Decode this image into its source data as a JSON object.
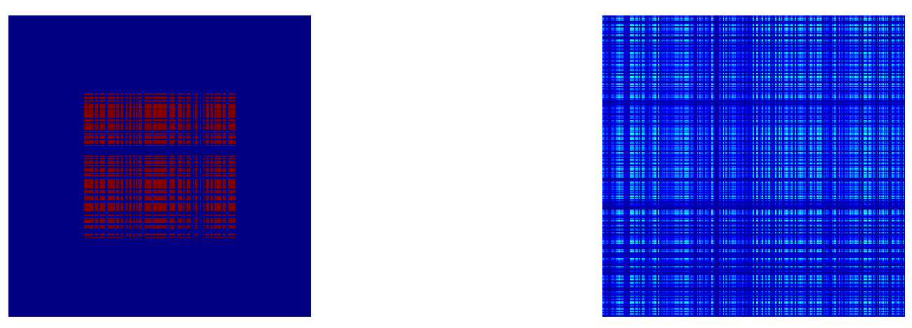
{
  "chart_data": [
    {
      "type": "heatmap",
      "title": "",
      "xlabel": "",
      "ylabel": "",
      "axes_visible": false,
      "grid": false,
      "colormap": "jet",
      "value_range": [
        0,
        1
      ],
      "background_value": 0,
      "matrix_size": 256,
      "active_block": {
        "row_range": [
          64,
          192
        ],
        "col_range": [
          64,
          192
        ]
      },
      "active_values": [
        0,
        1
      ],
      "pattern": "sparse-outer-product",
      "colors": {
        "low": "#00008b",
        "high": "#8b0000"
      }
    },
    {
      "type": "heatmap",
      "title": "",
      "xlabel": "",
      "ylabel": "",
      "axes_visible": false,
      "grid": false,
      "colormap": "jet",
      "value_range": [
        0,
        1
      ],
      "matrix_size": 256,
      "typical_value_range": [
        0.02,
        0.45
      ],
      "pattern": "rank-one-outer-product",
      "colors": {
        "low": "#00008b",
        "mid": "#1f3cff",
        "high": "#7ff0ff"
      }
    }
  ]
}
